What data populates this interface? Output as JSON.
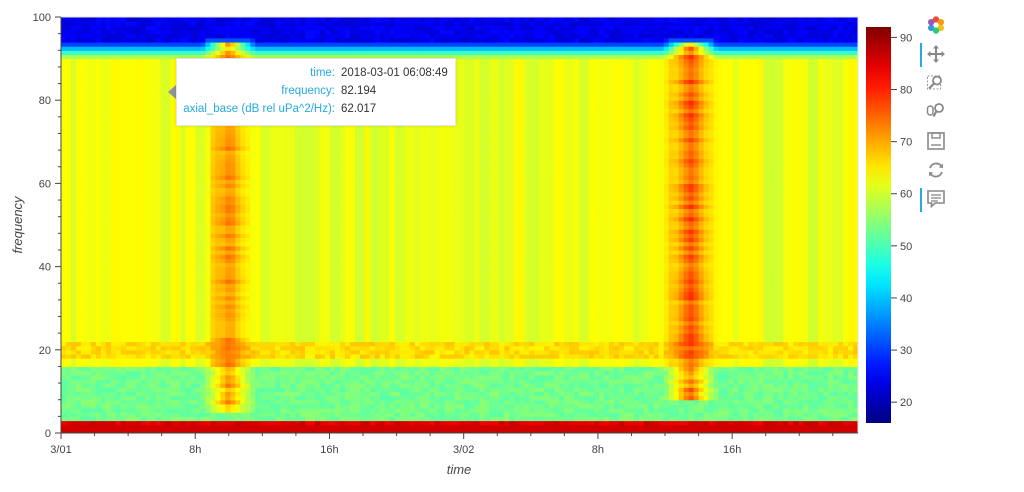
{
  "chart_data": {
    "type": "heatmap",
    "xlabel": "time",
    "ylabel": "frequency",
    "x_ticks": [
      "3/01",
      "8h",
      "16h",
      "3/02",
      "8h",
      "16h"
    ],
    "x_range": [
      "2018-03-01 00:00",
      "2018-03-02 23:30"
    ],
    "y_ticks": [
      0,
      20,
      40,
      60,
      80,
      100
    ],
    "ylim": [
      0,
      100
    ],
    "colorbar": {
      "ticks": [
        20,
        30,
        40,
        50,
        60,
        70,
        80,
        90
      ],
      "range": [
        16,
        92
      ],
      "colormap": "jet"
    },
    "baseline_level": 62,
    "features": [
      {
        "description": "low band near 0",
        "freq": [
          0,
          2.5
        ],
        "level": 85
      },
      {
        "description": "low region",
        "freq": [
          3,
          16
        ],
        "level": 53
      },
      {
        "description": "band near 20",
        "freq": [
          18,
          22
        ],
        "level": 66
      },
      {
        "description": "top blue region",
        "freq": [
          94,
          100
        ],
        "level": 24
      },
      {
        "description": "2018-03-01 ~10:00",
        "time": "2018-03-01 10:00",
        "freq": [
          5,
          95
        ],
        "level": 75
      },
      {
        "description": "2018-03-02 ~13:30",
        "time": "2018-03-02 13:30",
        "freq": [
          8,
          95
        ],
        "level": 80
      }
    ]
  },
  "tooltip": {
    "rows": [
      {
        "key": "time:",
        "value": "2018-03-01 06:08:49"
      },
      {
        "key": "frequency:",
        "value": "82.194"
      },
      {
        "key": "axial_base (dB rel uPa^2/Hz):",
        "value": "62.017"
      }
    ]
  },
  "toolbar": {
    "tools": [
      {
        "name": "bokeh-logo-icon",
        "active": false
      },
      {
        "name": "pan-icon",
        "active": true
      },
      {
        "name": "box-zoom-icon",
        "active": false
      },
      {
        "name": "wheel-zoom-icon",
        "active": false
      },
      {
        "name": "save-icon",
        "active": false
      },
      {
        "name": "reset-icon",
        "active": false
      },
      {
        "name": "hover-icon",
        "active": true
      }
    ]
  }
}
